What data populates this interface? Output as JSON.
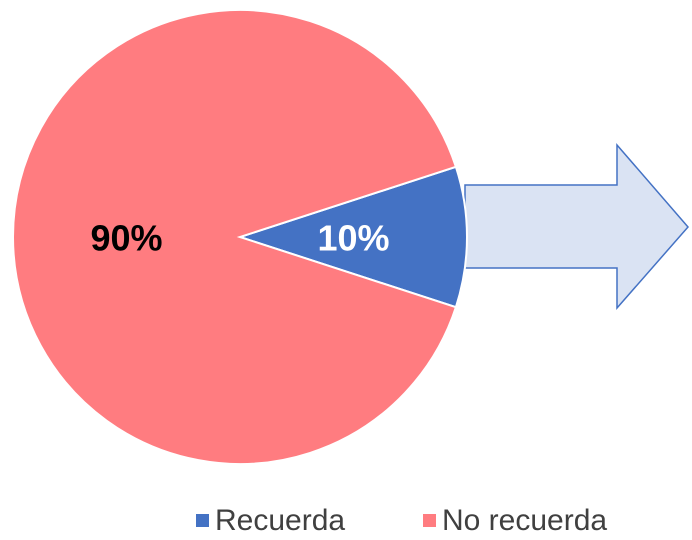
{
  "chart_data": {
    "type": "pie",
    "categories": [
      "Recuerda",
      "No recuerda"
    ],
    "values": [
      10,
      90
    ],
    "value_labels": [
      "10%",
      "90%"
    ],
    "colors": [
      "#4472c4",
      "#ff7c80"
    ],
    "legend": "bottom"
  }
}
